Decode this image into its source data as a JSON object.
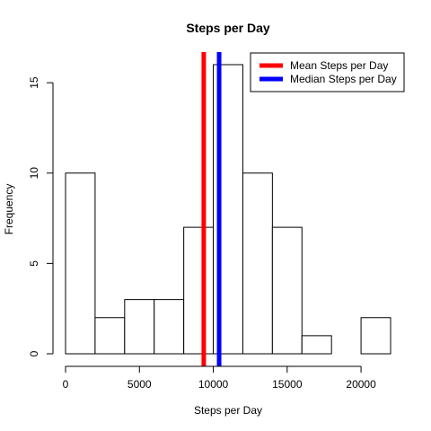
{
  "chart_data": {
    "type": "bar",
    "title": "Steps per Day",
    "xlabel": "Steps per Day",
    "ylabel": "Frequency",
    "bin_edges": [
      0,
      2000,
      4000,
      6000,
      8000,
      10000,
      12000,
      14000,
      16000,
      18000,
      20000,
      22000
    ],
    "values": [
      10,
      2,
      3,
      3,
      7,
      16,
      10,
      7,
      1,
      0,
      2
    ],
    "xlim": [
      0,
      22000
    ],
    "ylim": [
      0,
      16
    ],
    "x_ticks": [
      0,
      5000,
      10000,
      15000,
      20000
    ],
    "x_tick_labels": [
      "0",
      "5000",
      "10000",
      "15000",
      "20000"
    ],
    "y_ticks": [
      0,
      5,
      10,
      15
    ],
    "y_tick_labels": [
      "0",
      "5",
      "10",
      "15"
    ],
    "bar_fill": "#ffffff",
    "bar_stroke": "#000000",
    "grid": false,
    "reference_lines": [
      {
        "name": "Mean Steps per Day",
        "x": 9354,
        "color": "#ff0000"
      },
      {
        "name": "Median Steps per Day",
        "x": 10395,
        "color": "#0000ff"
      }
    ],
    "legend": {
      "placement": "top-right",
      "entries": [
        {
          "label": "Mean Steps per Day",
          "color": "#ff0000"
        },
        {
          "label": "Median Steps per Day",
          "color": "#0000ff"
        }
      ]
    }
  }
}
